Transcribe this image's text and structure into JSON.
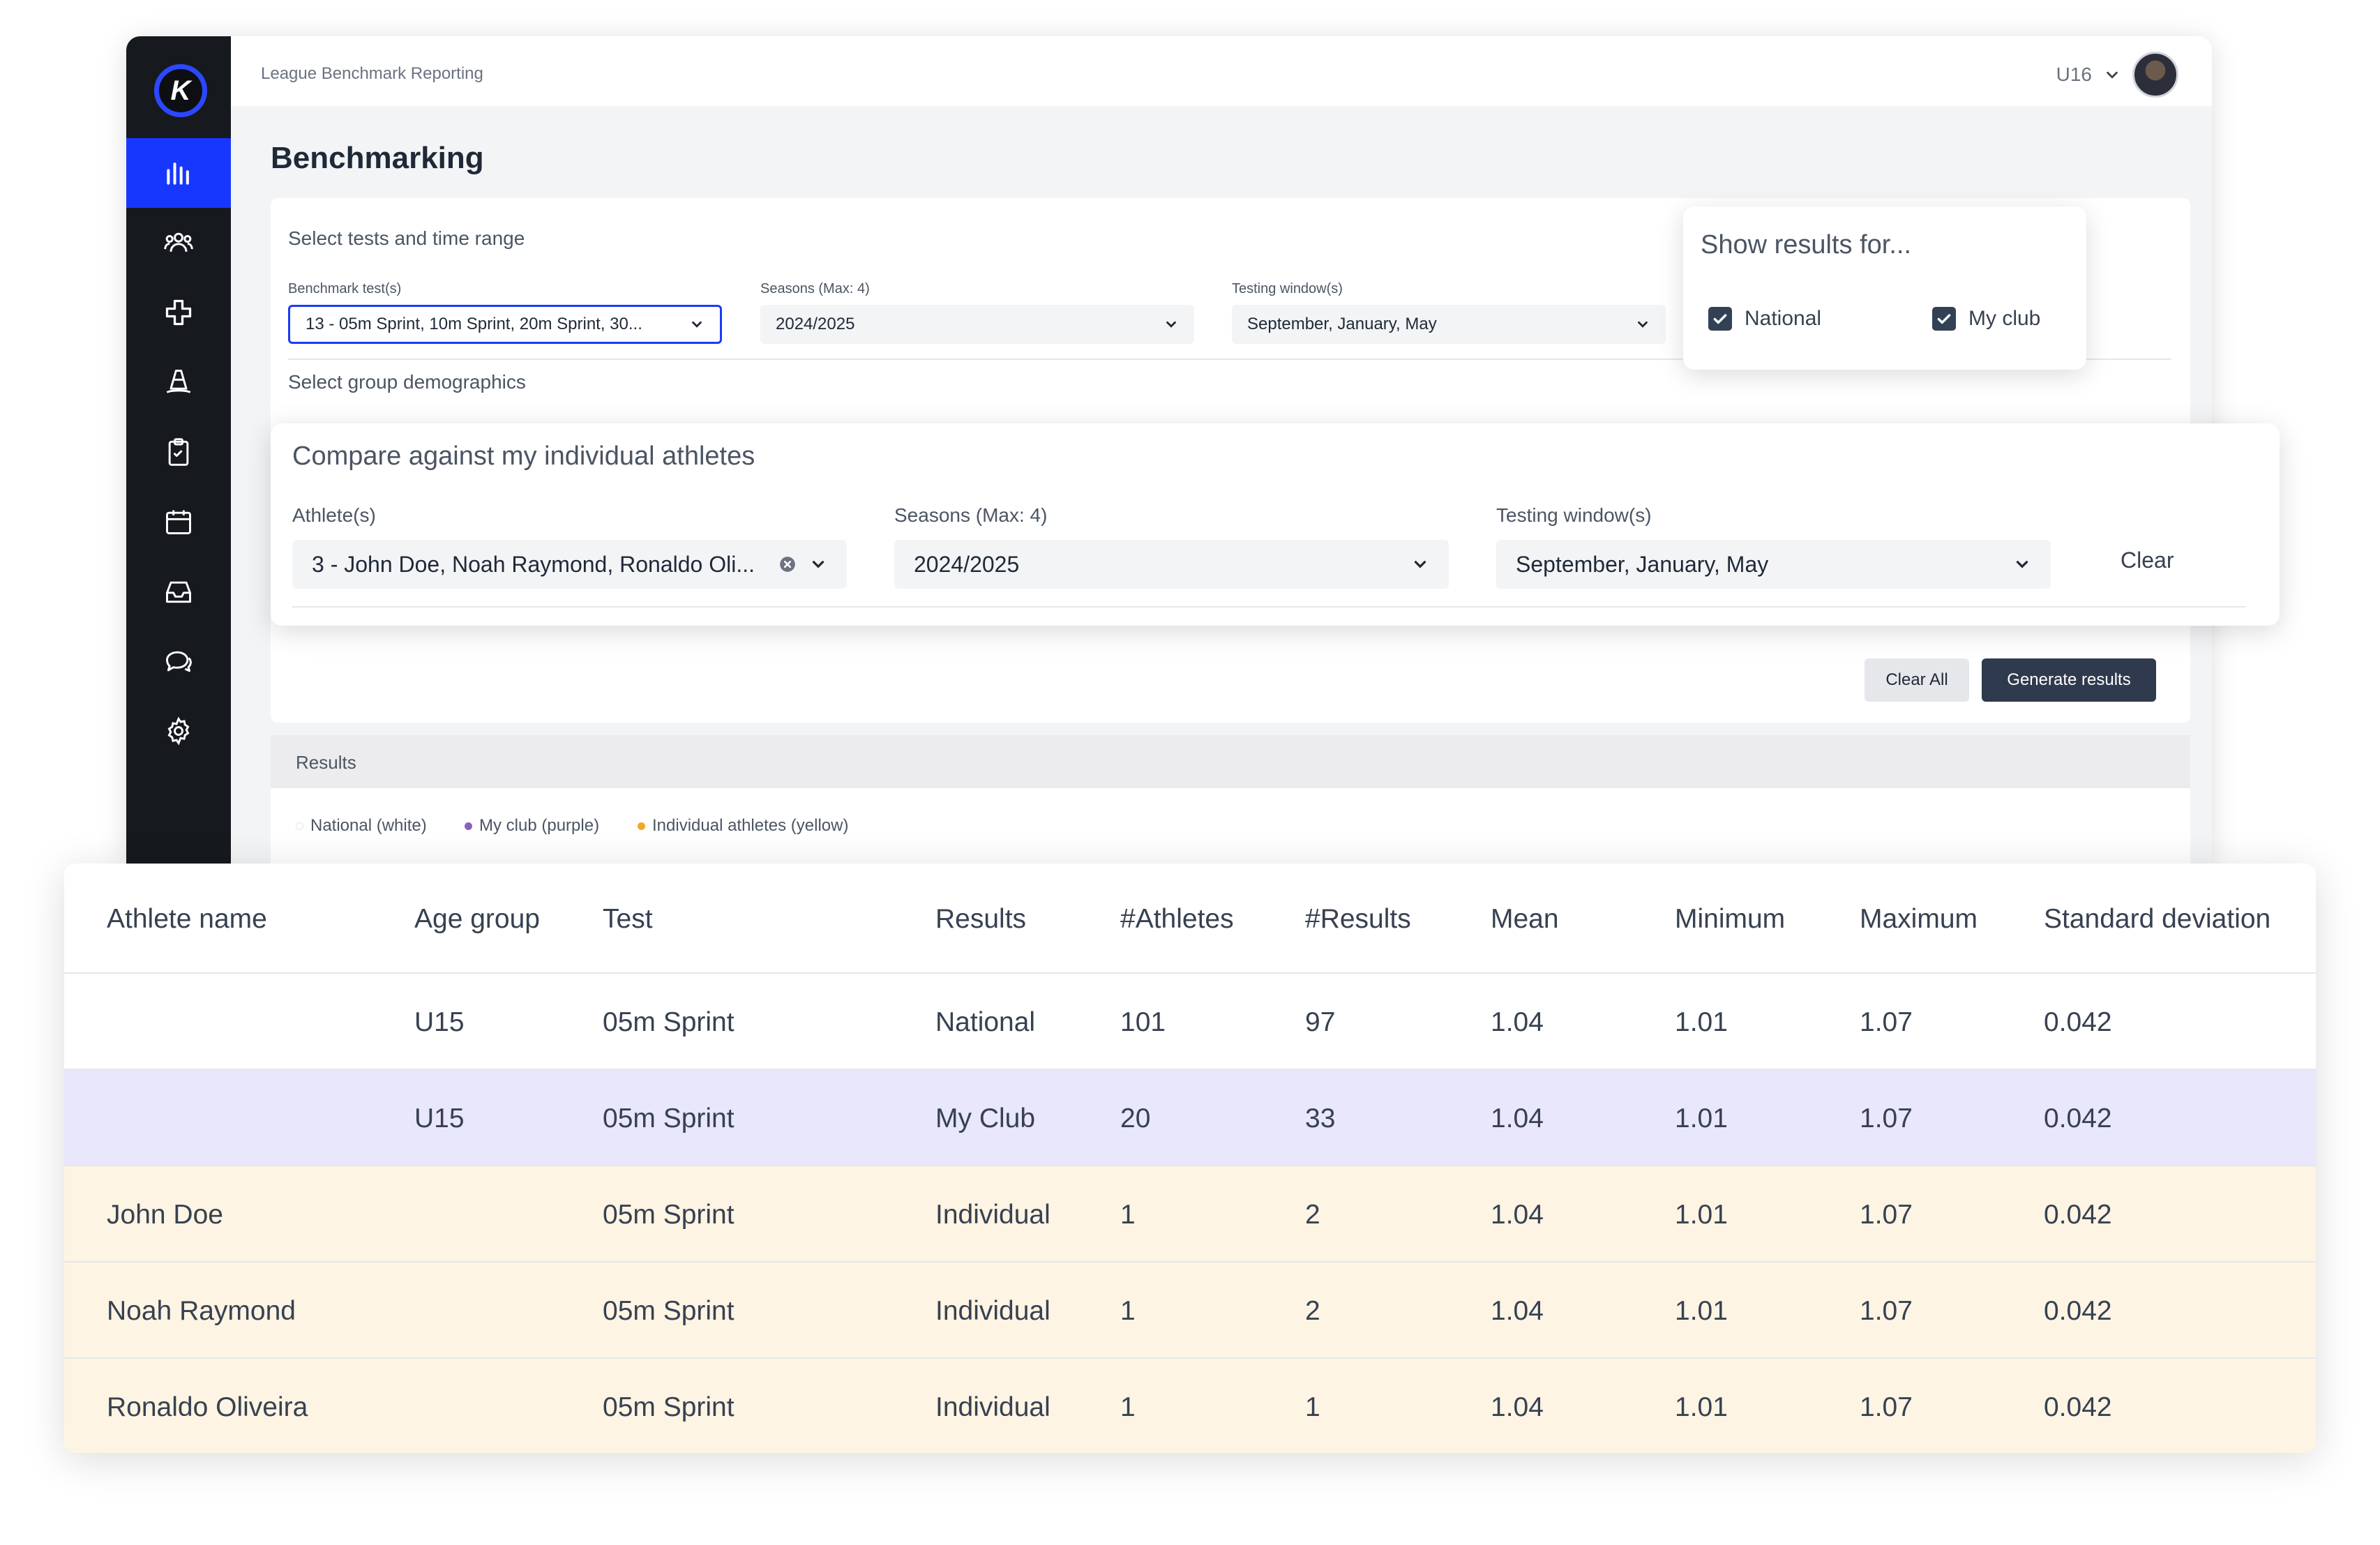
{
  "app": {
    "breadcrumb": "League Benchmark Reporting",
    "team": "U16",
    "page_title": "Benchmarking"
  },
  "nav": [
    {
      "icon": "bar-chart-icon",
      "active": true
    },
    {
      "icon": "users-icon",
      "active": false
    },
    {
      "icon": "medical-cross-icon",
      "active": false
    },
    {
      "icon": "training-cone-icon",
      "active": false
    },
    {
      "icon": "clipboard-icon",
      "active": false
    },
    {
      "icon": "calendar-icon",
      "active": false
    },
    {
      "icon": "inbox-icon",
      "active": false
    },
    {
      "icon": "chat-icon",
      "active": false
    },
    {
      "icon": "gear-icon",
      "active": false
    }
  ],
  "tests_section": {
    "label": "Select tests and time range",
    "benchmark_label": "Benchmark test(s)",
    "benchmark_value": "13 - 05m Sprint, 10m Sprint, 20m Sprint, 30...",
    "seasons_label": "Seasons (Max: 4)",
    "seasons_value": "2024/2025",
    "windows_label": "Testing window(s)",
    "windows_value": "September, January, May"
  },
  "demographics_label": "Select group demographics",
  "show_results": {
    "title": "Show results for...",
    "options": [
      {
        "label": "National",
        "checked": true
      },
      {
        "label": "My club",
        "checked": true
      }
    ]
  },
  "compare": {
    "title": "Compare against my individual athletes",
    "athletes_label": "Athlete(s)",
    "athletes_value": "3 - John Doe, Noah Raymond, Ronaldo Oli...",
    "seasons_label": "Seasons (Max: 4)",
    "seasons_value": "2024/2025",
    "windows_label": "Testing window(s)",
    "windows_value": "September, January, May",
    "clear_label": "Clear"
  },
  "actions": {
    "clear_all": "Clear All",
    "generate": "Generate results"
  },
  "results_label": "Results",
  "legend": [
    {
      "label": "National (white)",
      "color": "#ffffff"
    },
    {
      "label": "My club (purple)",
      "color": "#8b5fbf"
    },
    {
      "label": "Individual athletes (yellow)",
      "color": "#f5a623"
    }
  ],
  "colors": {
    "accent": "#1737ff",
    "club_row": "#e8e7fb",
    "individual_row": "#fdf4e3",
    "primary_button": "#2f3a4e"
  },
  "table": {
    "headers": [
      "Athlete name",
      "Age group",
      "Test",
      "Results",
      "#Athletes",
      "#Results",
      "Mean",
      "Minimum",
      "Maximum",
      "Standard deviation"
    ],
    "rows": [
      {
        "type": "national",
        "cells": [
          "",
          "U15",
          "05m Sprint",
          "National",
          "101",
          "97",
          "1.04",
          "1.01",
          "1.07",
          "0.042"
        ]
      },
      {
        "type": "club",
        "cells": [
          "",
          "U15",
          "05m Sprint",
          "My Club",
          "20",
          "33",
          "1.04",
          "1.01",
          "1.07",
          "0.042"
        ]
      },
      {
        "type": "individual",
        "cells": [
          "John Doe",
          "",
          "05m Sprint",
          "Individual",
          "1",
          "2",
          "1.04",
          "1.01",
          "1.07",
          "0.042"
        ]
      },
      {
        "type": "individual",
        "cells": [
          "Noah Raymond",
          "",
          "05m Sprint",
          "Individual",
          "1",
          "2",
          "1.04",
          "1.01",
          "1.07",
          "0.042"
        ]
      },
      {
        "type": "individual",
        "cells": [
          "Ronaldo Oliveira",
          "",
          "05m Sprint",
          "Individual",
          "1",
          "1",
          "1.04",
          "1.01",
          "1.07",
          "0.042"
        ]
      }
    ]
  }
}
